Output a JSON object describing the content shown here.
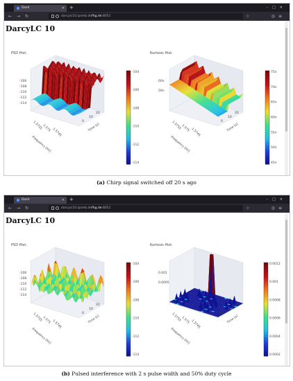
{
  "panels": [
    {
      "browser": {
        "tab_title": "Dash",
        "url_prefix": "darcylc10.ipsmb.de",
        "url_bold": "fhg.de",
        "url_suffix": ":8051"
      },
      "app_title": "DarcyLC 10",
      "left_plot": {
        "title": "PSD Hist.",
        "z_ticks": [
          "-106",
          "-108",
          "-110",
          "-112",
          "-114"
        ],
        "colorbar_ticks": [
          "-104",
          "-106",
          "-108",
          "-110",
          "-112",
          "-114"
        ],
        "x_ticks": [
          "1.5755",
          "1.575",
          "1.5745"
        ],
        "x_label": "Frequency [Hz]",
        "y_ticks": [
          "0",
          "10",
          "20"
        ],
        "y_label": "Time [s]"
      },
      "right_plot": {
        "title": "Kurtosis Hist.",
        "z_ticks": [
          "60n",
          "50n"
        ],
        "colorbar_ticks": [
          "75n",
          "70n",
          "65n",
          "60n",
          "55n",
          "50n",
          "45n"
        ],
        "x_ticks": [
          "1.5755",
          "1.575",
          "1.5745"
        ],
        "x_label": "Frequency [Hz]",
        "y_ticks": [
          "0",
          "10",
          "20"
        ],
        "y_label": "Time [s]"
      },
      "caption_letter": "(a)",
      "caption_text": "Chirp signal switched off 20 s ago"
    },
    {
      "browser": {
        "tab_title": "Dash",
        "url_prefix": "darcylc10.ipsmb.de",
        "url_bold": "fhg.de",
        "url_suffix": ":8051"
      },
      "app_title": "DarcyLC 10",
      "left_plot": {
        "title": "PSD Hist.",
        "z_ticks": [
          "-106",
          "-108",
          "-110",
          "-112",
          "-114"
        ],
        "colorbar_ticks": [
          "-104",
          "-106",
          "-108",
          "-110",
          "-112",
          "-114"
        ],
        "x_ticks": [
          "1.5755",
          "1.575",
          "1.5745"
        ],
        "x_label": "Frequency [Hz]",
        "y_ticks": [
          "0",
          "10",
          "20"
        ],
        "y_label": "Time [s]"
      },
      "right_plot": {
        "title": "Kurtosis Hist.",
        "z_ticks": [
          "0.001",
          "0.0005"
        ],
        "colorbar_ticks": [
          "0.0012",
          "0.001",
          "0.0008",
          "0.0006",
          "0.0004",
          "0.0002"
        ],
        "x_ticks": [
          "1.5755",
          "1.575",
          "1.5745"
        ],
        "x_label": "Frequency [Hz]",
        "y_ticks": [
          "0",
          "10",
          "20"
        ],
        "y_label": "Time [s]"
      },
      "caption_letter": "(b)",
      "caption_text": "Pulsed interference with 2 s pulse width and 50% duty cycle"
    }
  ],
  "colorscale": [
    "#0b0b8a",
    "#1f3ad8",
    "#1ec0e8",
    "#3de08a",
    "#e8e030",
    "#f07a1a",
    "#c8101a",
    "#7a0a0a"
  ]
}
